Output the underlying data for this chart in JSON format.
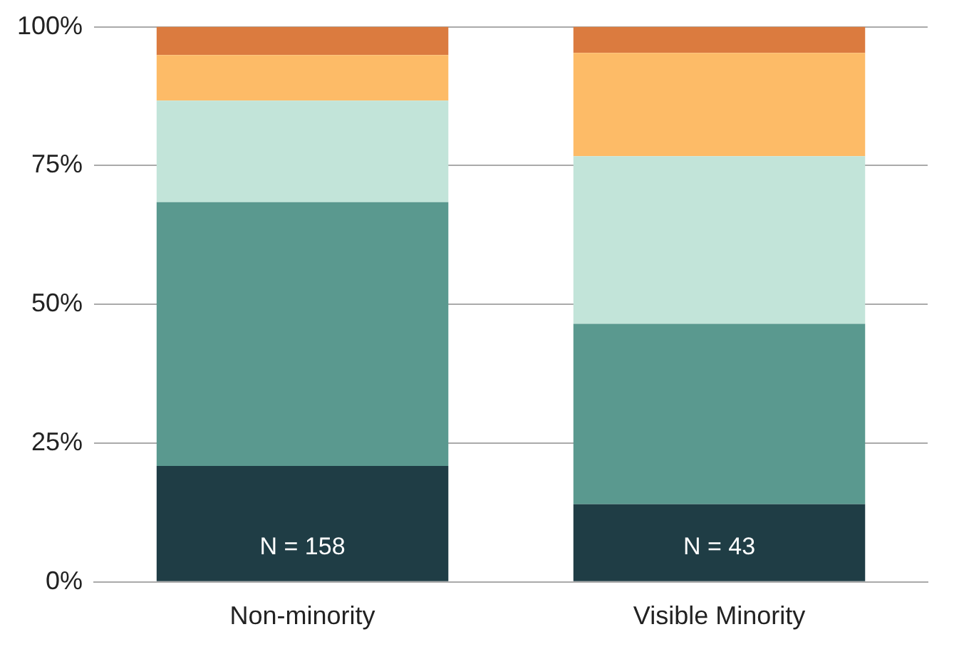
{
  "chart_data": {
    "type": "bar",
    "stacked": true,
    "categories": [
      "Non-minority",
      "Visible Minority"
    ],
    "series": [
      {
        "color": "#1f3d45",
        "values": [
          20.9,
          14.0
        ]
      },
      {
        "color": "#5a998f",
        "values": [
          47.5,
          32.5
        ]
      },
      {
        "color": "#c2e4d9",
        "values": [
          18.3,
          30.2
        ]
      },
      {
        "color": "#fdbb67",
        "values": [
          8.2,
          18.6
        ]
      },
      {
        "color": "#db7b3f",
        "values": [
          5.1,
          4.7
        ]
      }
    ],
    "ylim": [
      0,
      100
    ],
    "yticks": [
      {
        "value": 0,
        "label": "0%"
      },
      {
        "value": 25,
        "label": "25%"
      },
      {
        "value": 50,
        "label": "50%"
      },
      {
        "value": 75,
        "label": "75%"
      },
      {
        "value": 100,
        "label": "100%"
      }
    ],
    "grid": "y",
    "legend": false,
    "annotations": [
      "N = 158",
      "N = 43"
    ]
  }
}
